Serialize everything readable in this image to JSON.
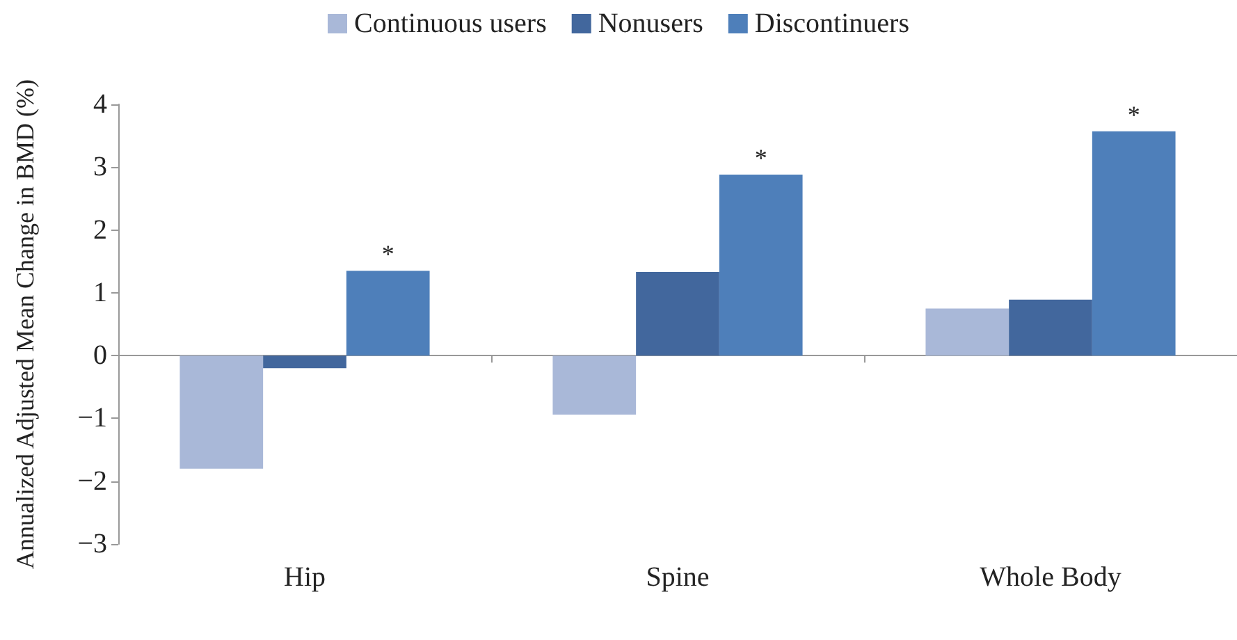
{
  "chart_data": {
    "type": "bar",
    "ylabel": "Annualized Adjusted Mean Change in BMD (%)",
    "categories": [
      "Hip",
      "Spine",
      "Whole Body"
    ],
    "series": [
      {
        "name": "Continuous users",
        "color": "#a9b8d8",
        "values": [
          -1.8,
          -0.94,
          0.75
        ]
      },
      {
        "name": "Nonusers",
        "color": "#42679d",
        "values": [
          -0.2,
          1.33,
          0.89
        ]
      },
      {
        "name": "Discontinuers",
        "color": "#4e7fba",
        "values": [
          1.35,
          2.88,
          3.57
        ]
      }
    ],
    "ylim": [
      -3,
      4
    ],
    "yticks": [
      -3,
      -2,
      -1,
      0,
      1,
      2,
      3,
      4
    ],
    "legend": "top",
    "annotations": [
      "*",
      "*",
      "*"
    ]
  }
}
